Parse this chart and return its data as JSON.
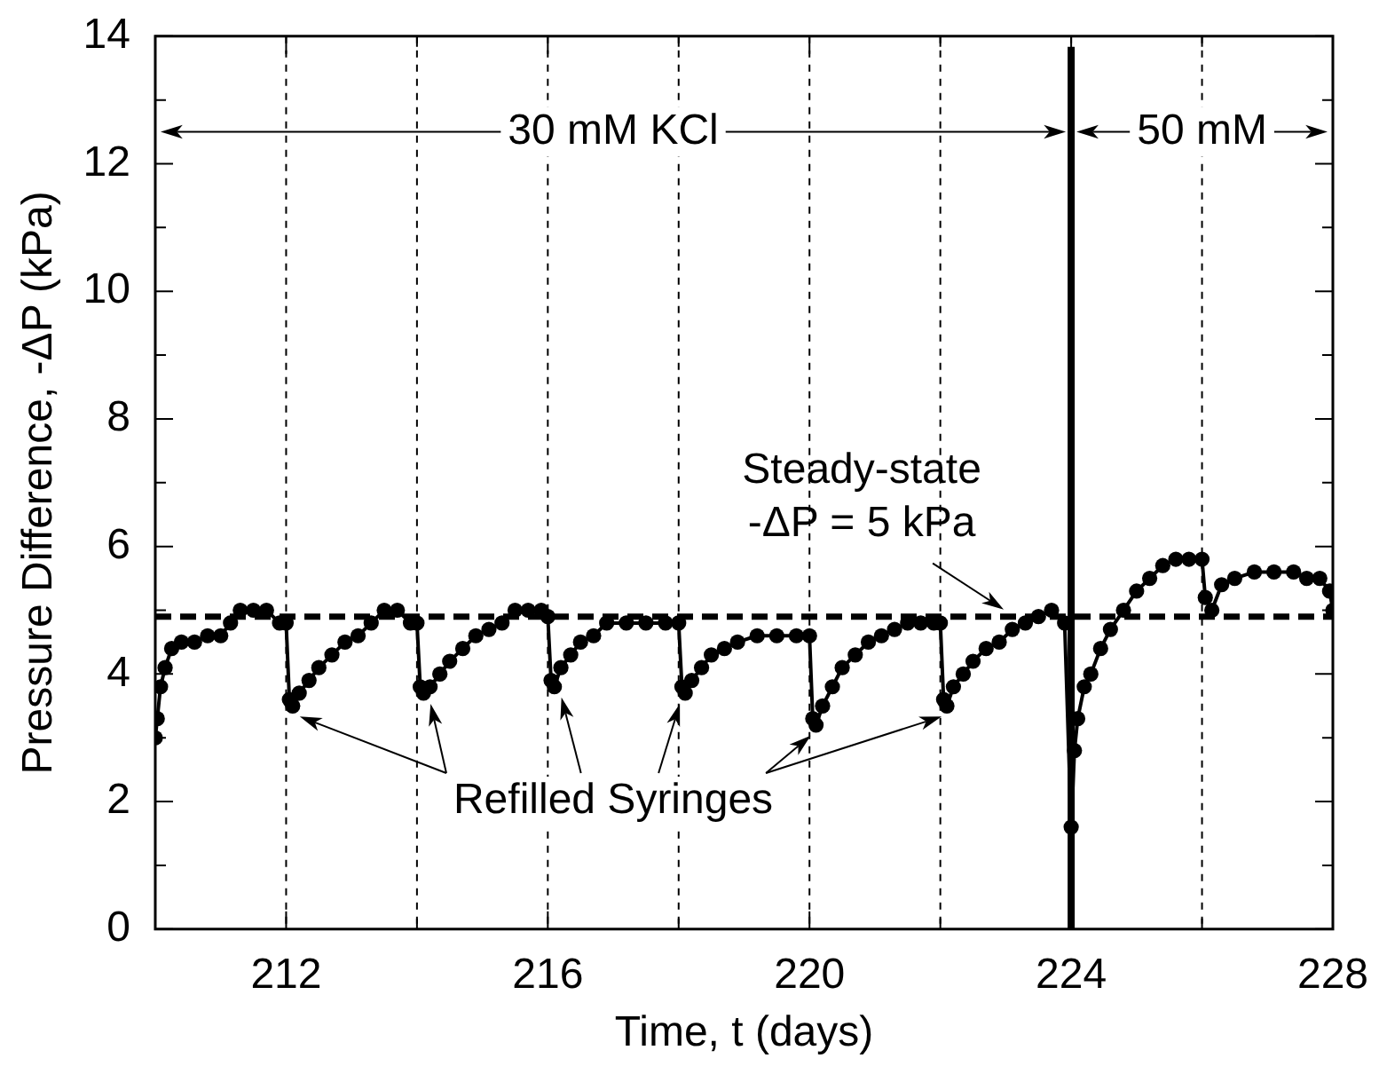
{
  "chart_data": {
    "type": "line",
    "xlabel": "Time, t (days)",
    "ylabel": "Pressure Difference, -ΔP (kPa)",
    "x": [
      210.0,
      210.03,
      210.08,
      210.15,
      210.25,
      210.4,
      210.6,
      210.8,
      211.0,
      211.15,
      211.3,
      211.5,
      211.7,
      211.9,
      212.0,
      212.05,
      212.1,
      212.2,
      212.35,
      212.5,
      212.7,
      212.9,
      213.1,
      213.3,
      213.5,
      213.7,
      213.9,
      214.0,
      214.05,
      214.1,
      214.2,
      214.35,
      214.5,
      214.7,
      214.9,
      215.1,
      215.3,
      215.5,
      215.7,
      215.9,
      216.0,
      216.05,
      216.1,
      216.2,
      216.35,
      216.5,
      216.7,
      216.9,
      217.2,
      217.5,
      217.8,
      218.0,
      218.05,
      218.1,
      218.2,
      218.35,
      218.5,
      218.7,
      218.9,
      219.2,
      219.5,
      219.8,
      220.0,
      220.05,
      220.1,
      220.2,
      220.35,
      220.5,
      220.7,
      220.9,
      221.1,
      221.3,
      221.5,
      221.7,
      221.9,
      222.0,
      222.05,
      222.1,
      222.2,
      222.35,
      222.5,
      222.7,
      222.9,
      223.1,
      223.3,
      223.5,
      223.7,
      223.9,
      224.0,
      224.05,
      224.1,
      224.2,
      224.3,
      224.45,
      224.6,
      224.8,
      225.0,
      225.2,
      225.4,
      225.6,
      225.8,
      226.0,
      226.05,
      226.15,
      226.3,
      226.5,
      226.8,
      227.1,
      227.4,
      227.6,
      227.8,
      227.95,
      228.0
    ],
    "series": [
      {
        "color": "#000000",
        "values": [
          3.0,
          3.3,
          3.8,
          4.1,
          4.4,
          4.5,
          4.5,
          4.6,
          4.6,
          4.8,
          5.0,
          5.0,
          5.0,
          4.8,
          4.8,
          3.6,
          3.5,
          3.7,
          3.9,
          4.1,
          4.3,
          4.5,
          4.6,
          4.8,
          5.0,
          5.0,
          4.8,
          4.8,
          3.8,
          3.7,
          3.8,
          4.0,
          4.2,
          4.4,
          4.6,
          4.7,
          4.8,
          5.0,
          5.0,
          5.0,
          4.9,
          3.9,
          3.8,
          4.1,
          4.3,
          4.5,
          4.6,
          4.8,
          4.8,
          4.8,
          4.8,
          4.8,
          3.8,
          3.7,
          3.9,
          4.1,
          4.3,
          4.4,
          4.5,
          4.6,
          4.6,
          4.6,
          4.6,
          3.3,
          3.2,
          3.5,
          3.8,
          4.1,
          4.3,
          4.5,
          4.6,
          4.7,
          4.8,
          4.8,
          4.8,
          4.8,
          3.6,
          3.5,
          3.8,
          4.0,
          4.2,
          4.4,
          4.5,
          4.7,
          4.8,
          4.9,
          5.0,
          4.8,
          1.6,
          2.8,
          3.3,
          3.8,
          4.0,
          4.4,
          4.7,
          5.0,
          5.3,
          5.5,
          5.7,
          5.8,
          5.8,
          5.8,
          5.2,
          5.0,
          5.4,
          5.5,
          5.6,
          5.6,
          5.6,
          5.5,
          5.5,
          5.3,
          5.0
        ]
      }
    ],
    "xlim": [
      210,
      228
    ],
    "xticks": [
      {
        "value": 210,
        "label": null
      },
      212,
      {
        "value": 214,
        "label": null
      },
      216,
      {
        "value": 218,
        "label": null
      },
      220,
      {
        "value": 222,
        "label": null
      },
      224,
      {
        "value": 226,
        "label": null
      },
      228
    ],
    "ylim": [
      0,
      14
    ],
    "yticks": [
      0,
      {
        "value": 1,
        "label": null
      },
      2,
      {
        "value": 3,
        "label": null
      },
      4,
      {
        "value": 5,
        "label": null
      },
      6,
      {
        "value": 7,
        "label": null
      },
      8,
      {
        "value": 9,
        "label": null
      },
      10,
      {
        "value": 11,
        "label": null
      },
      12,
      {
        "value": 13,
        "label": null
      },
      14
    ],
    "grid": "x",
    "legend": false,
    "marker": "circle",
    "line_style": "solid",
    "ref_lines": [
      {
        "axis": "x",
        "value": 224,
        "line_style": "solid",
        "color": "#000000"
      },
      {
        "axis": "y",
        "value": 4.9,
        "label": "Steady-state\n-ΔP = 5 kPa",
        "line_style": "dashed",
        "color": "#000000"
      }
    ],
    "annotations": [
      "30 mM KCl",
      "50 mM",
      "Refilled Syringes"
    ]
  }
}
